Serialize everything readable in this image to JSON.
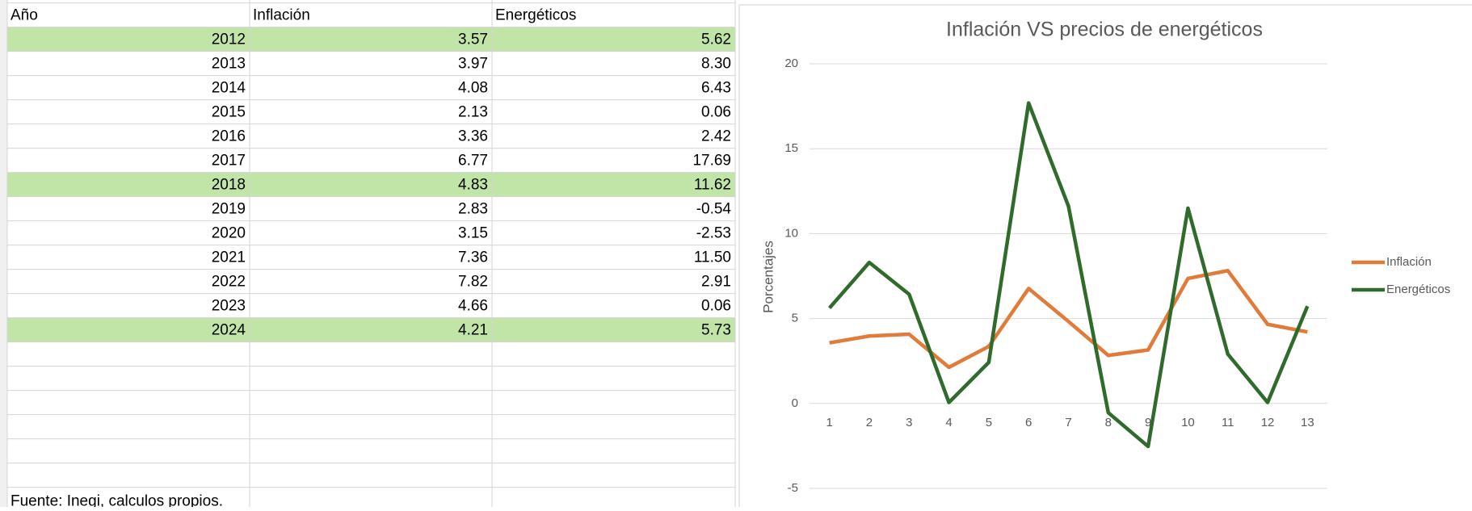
{
  "table": {
    "header": [
      "Año",
      "Inflación",
      "Energéticos"
    ],
    "rows": [
      [
        "2012",
        "3.57",
        "5.62"
      ],
      [
        "2013",
        "3.97",
        "8.30"
      ],
      [
        "2014",
        "4.08",
        "6.43"
      ],
      [
        "2015",
        "2.13",
        "0.06"
      ],
      [
        "2016",
        "3.36",
        "2.42"
      ],
      [
        "2017",
        "6.77",
        "17.69"
      ],
      [
        "2018",
        "4.83",
        "11.62"
      ],
      [
        "2019",
        "2.83",
        "-0.54"
      ],
      [
        "2020",
        "3.15",
        "-2.53"
      ],
      [
        "2021",
        "7.36",
        "11.50"
      ],
      [
        "2022",
        "7.82",
        "2.91"
      ],
      [
        "2023",
        "4.66",
        "0.06"
      ],
      [
        "2024",
        "4.21",
        "5.73"
      ]
    ],
    "highlighted_rows": [
      0,
      6,
      12
    ],
    "highlight_color": "#c1e5a7",
    "footer": "Fuente: Inegi, calculos propios."
  },
  "chart_data": {
    "type": "line",
    "title": "Inflación VS precios de energéticos",
    "y_label": "Porcentajes",
    "categories": [
      1,
      2,
      3,
      4,
      5,
      6,
      7,
      8,
      9,
      10,
      11,
      12,
      13
    ],
    "series": [
      {
        "name": "Inflación",
        "color": "#e07b39",
        "values": [
          3.57,
          3.97,
          4.08,
          2.13,
          3.36,
          6.77,
          4.83,
          2.83,
          3.15,
          7.36,
          7.82,
          4.66,
          4.21
        ]
      },
      {
        "name": "Energéticos",
        "color": "#2f6b2b",
        "values": [
          5.62,
          8.3,
          6.43,
          0.06,
          2.42,
          17.69,
          11.62,
          -0.54,
          -2.53,
          11.5,
          2.91,
          0.06,
          5.73
        ]
      }
    ],
    "ylim": [
      -5,
      20
    ],
    "yticks": [
      -5,
      0,
      5,
      10,
      15,
      20
    ],
    "grid": true,
    "legend": "right"
  }
}
